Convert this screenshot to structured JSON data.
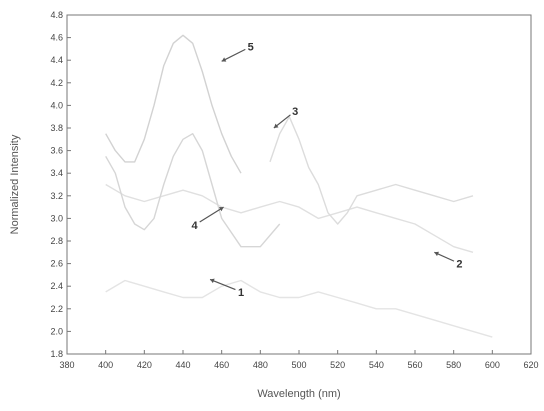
{
  "chart_data": {
    "type": "line",
    "title": "",
    "xlabel": "Wavelength (nm)",
    "ylabel": "Normalized Intensity",
    "xlim": [
      380,
      620
    ],
    "ylim": [
      1.8,
      4.8
    ],
    "x_ticks": [
      "380",
      "400",
      "420",
      "440",
      "460",
      "480",
      "500",
      "520",
      "540",
      "560",
      "580",
      "600",
      "620"
    ],
    "y_ticks": [
      "1.8",
      "2.0",
      "2.2",
      "2.4",
      "2.6",
      "2.8",
      "3.0",
      "3.2",
      "3.4",
      "3.6",
      "3.8",
      "4.0",
      "4.2",
      "4.4",
      "4.6",
      "4.8"
    ],
    "grid": false,
    "legend": "none",
    "series": [
      {
        "name": "1",
        "color": "#e4e4e4",
        "x": [
          400,
          410,
          420,
          430,
          440,
          450,
          460,
          470,
          480,
          490,
          500,
          510,
          520,
          530,
          540,
          550,
          560,
          570,
          580,
          590,
          600
        ],
        "y": [
          2.35,
          2.45,
          2.4,
          2.35,
          2.3,
          2.3,
          2.4,
          2.45,
          2.35,
          2.3,
          2.3,
          2.35,
          2.3,
          2.25,
          2.2,
          2.2,
          2.15,
          2.1,
          2.05,
          2.0,
          1.95
        ]
      },
      {
        "name": "2",
        "color": "#e0e0e0",
        "x": [
          400,
          410,
          420,
          430,
          440,
          450,
          460,
          470,
          480,
          490,
          500,
          510,
          520,
          530,
          540,
          550,
          560,
          570,
          580,
          590
        ],
        "y": [
          3.3,
          3.2,
          3.15,
          3.2,
          3.25,
          3.2,
          3.1,
          3.05,
          3.1,
          3.15,
          3.1,
          3.0,
          3.05,
          3.1,
          3.05,
          3.0,
          2.95,
          2.85,
          2.75,
          2.7
        ]
      },
      {
        "name": "3",
        "color": "#dcdcdc",
        "x": [
          485,
          490,
          495,
          500,
          505,
          510,
          515,
          520,
          525,
          530,
          540,
          550,
          560,
          570,
          580,
          590
        ],
        "y": [
          3.5,
          3.75,
          3.9,
          3.7,
          3.45,
          3.3,
          3.05,
          2.95,
          3.05,
          3.2,
          3.25,
          3.3,
          3.25,
          3.2,
          3.15,
          3.2
        ]
      },
      {
        "name": "4",
        "color": "#d6d6d6",
        "x": [
          400,
          405,
          410,
          415,
          420,
          425,
          430,
          435,
          440,
          445,
          450,
          455,
          460,
          470,
          480,
          490
        ],
        "y": [
          3.55,
          3.4,
          3.1,
          2.95,
          2.9,
          3.0,
          3.3,
          3.55,
          3.7,
          3.75,
          3.6,
          3.3,
          3.0,
          2.75,
          2.75,
          2.95
        ]
      },
      {
        "name": "5",
        "color": "#d2d2d2",
        "x": [
          400,
          405,
          410,
          415,
          420,
          425,
          430,
          435,
          440,
          445,
          450,
          455,
          460,
          465,
          470
        ],
        "y": [
          3.75,
          3.6,
          3.5,
          3.5,
          3.7,
          4.0,
          4.35,
          4.55,
          4.62,
          4.55,
          4.3,
          4.0,
          3.75,
          3.55,
          3.4
        ]
      }
    ],
    "annotations": [
      {
        "text": "1",
        "x": 470,
        "y": 2.35,
        "target_x": 454,
        "target_y": 2.46
      },
      {
        "text": "2",
        "x": 583,
        "y": 2.6,
        "target_x": 570,
        "target_y": 2.7
      },
      {
        "text": "3",
        "x": 498,
        "y": 3.95,
        "target_x": 487,
        "target_y": 3.8
      },
      {
        "text": "4",
        "x": 446,
        "y": 2.94,
        "target_x": 461,
        "target_y": 3.1
      },
      {
        "text": "5",
        "x": 475,
        "y": 4.52,
        "target_x": 460,
        "target_y": 4.39
      }
    ]
  }
}
